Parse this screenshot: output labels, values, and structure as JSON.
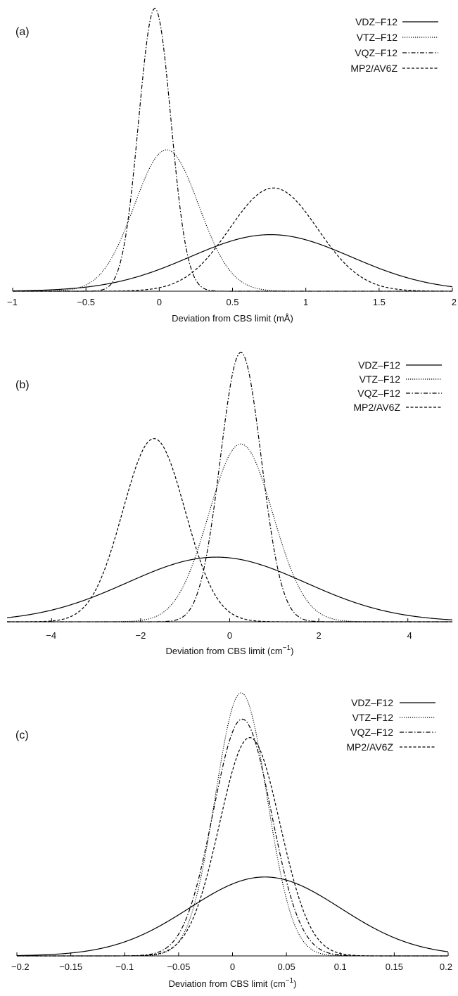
{
  "chart_data": [
    {
      "type": "line",
      "panel_label": "(a)",
      "xlabel": "Deviation from CBS limit (mÅ)",
      "xlabel_sup": "",
      "xlabel_tail": "",
      "ylabel": "",
      "xlim": [
        -1,
        2
      ],
      "xticks": [
        -1,
        -0.5,
        0,
        0.5,
        1,
        1.5,
        2
      ],
      "xtick_labels": [
        "−1",
        "−0.5",
        "0",
        "0.5",
        "1",
        "1.5",
        "2"
      ],
      "y_axis_values_shown": false,
      "legend_position": "top-right",
      "series": [
        {
          "name": "VDZ–F12",
          "style": "solid",
          "distribution": "gaussian",
          "mean": 0.76,
          "sd": 0.55,
          "relative_peak": 0.2
        },
        {
          "name": "VTZ–F12",
          "style": "dotted",
          "distribution": "gaussian",
          "mean": 0.05,
          "sd": 0.22,
          "relative_peak": 0.5
        },
        {
          "name": "VQZ–F12",
          "style": "dashdot",
          "distribution": "gaussian",
          "mean": -0.03,
          "sd": 0.11,
          "relative_peak": 1.0
        },
        {
          "name": "MP2/AV6Z",
          "style": "dashed",
          "distribution": "gaussian",
          "mean": 0.78,
          "sd": 0.3,
          "relative_peak": 0.365
        }
      ]
    },
    {
      "type": "line",
      "panel_label": "(b)",
      "xlabel": "Deviation from CBS limit (cm",
      "xlabel_sup": "−1",
      "xlabel_tail": ")",
      "ylabel": "",
      "xlim": [
        -5,
        5
      ],
      "xticks": [
        -4,
        -2,
        0,
        2,
        4
      ],
      "xtick_labels": [
        "−4",
        "−2",
        "0",
        "2",
        "4"
      ],
      "y_axis_values_shown": false,
      "legend_position": "top-right",
      "series": [
        {
          "name": "VDZ–F12",
          "style": "solid",
          "distribution": "gaussian",
          "mean": -0.3,
          "sd": 2.0,
          "relative_peak": 0.24
        },
        {
          "name": "VTZ–F12",
          "style": "dotted",
          "distribution": "gaussian",
          "mean": 0.25,
          "sd": 0.72,
          "relative_peak": 0.66
        },
        {
          "name": "VQZ–F12",
          "style": "dashdot",
          "distribution": "gaussian",
          "mean": 0.25,
          "sd": 0.46,
          "relative_peak": 1.0
        },
        {
          "name": "MP2/AV6Z",
          "style": "dashed",
          "distribution": "gaussian",
          "mean": -1.7,
          "sd": 0.7,
          "relative_peak": 0.68
        }
      ]
    },
    {
      "type": "line",
      "panel_label": "(c)",
      "xlabel": "Deviation from CBS limit (cm",
      "xlabel_sup": "−1",
      "xlabel_tail": ")",
      "ylabel": "",
      "xlim": [
        -0.2,
        0.2
      ],
      "xticks": [
        -0.2,
        -0.15,
        -0.1,
        -0.05,
        0,
        0.05,
        0.1,
        0.15,
        0.2
      ],
      "xtick_labels": [
        "−0.2",
        "−0.15",
        "−0.1",
        "−0.05",
        "0",
        "0.05",
        "0.1",
        "0.15",
        "0.2"
      ],
      "y_axis_values_shown": false,
      "legend_position": "top-right",
      "series": [
        {
          "name": "VDZ–F12",
          "style": "solid",
          "distribution": "gaussian",
          "mean": 0.03,
          "sd": 0.07,
          "relative_peak": 0.3
        },
        {
          "name": "VTZ–F12",
          "style": "dotted",
          "distribution": "gaussian",
          "mean": 0.008,
          "sd": 0.024,
          "relative_peak": 1.0
        },
        {
          "name": "VQZ–F12",
          "style": "dashdot",
          "distribution": "gaussian",
          "mean": 0.009,
          "sd": 0.027,
          "relative_peak": 0.9
        },
        {
          "name": "MP2/AV6Z",
          "style": "dashed",
          "distribution": "gaussian",
          "mean": 0.016,
          "sd": 0.028,
          "relative_peak": 0.83
        }
      ]
    }
  ]
}
